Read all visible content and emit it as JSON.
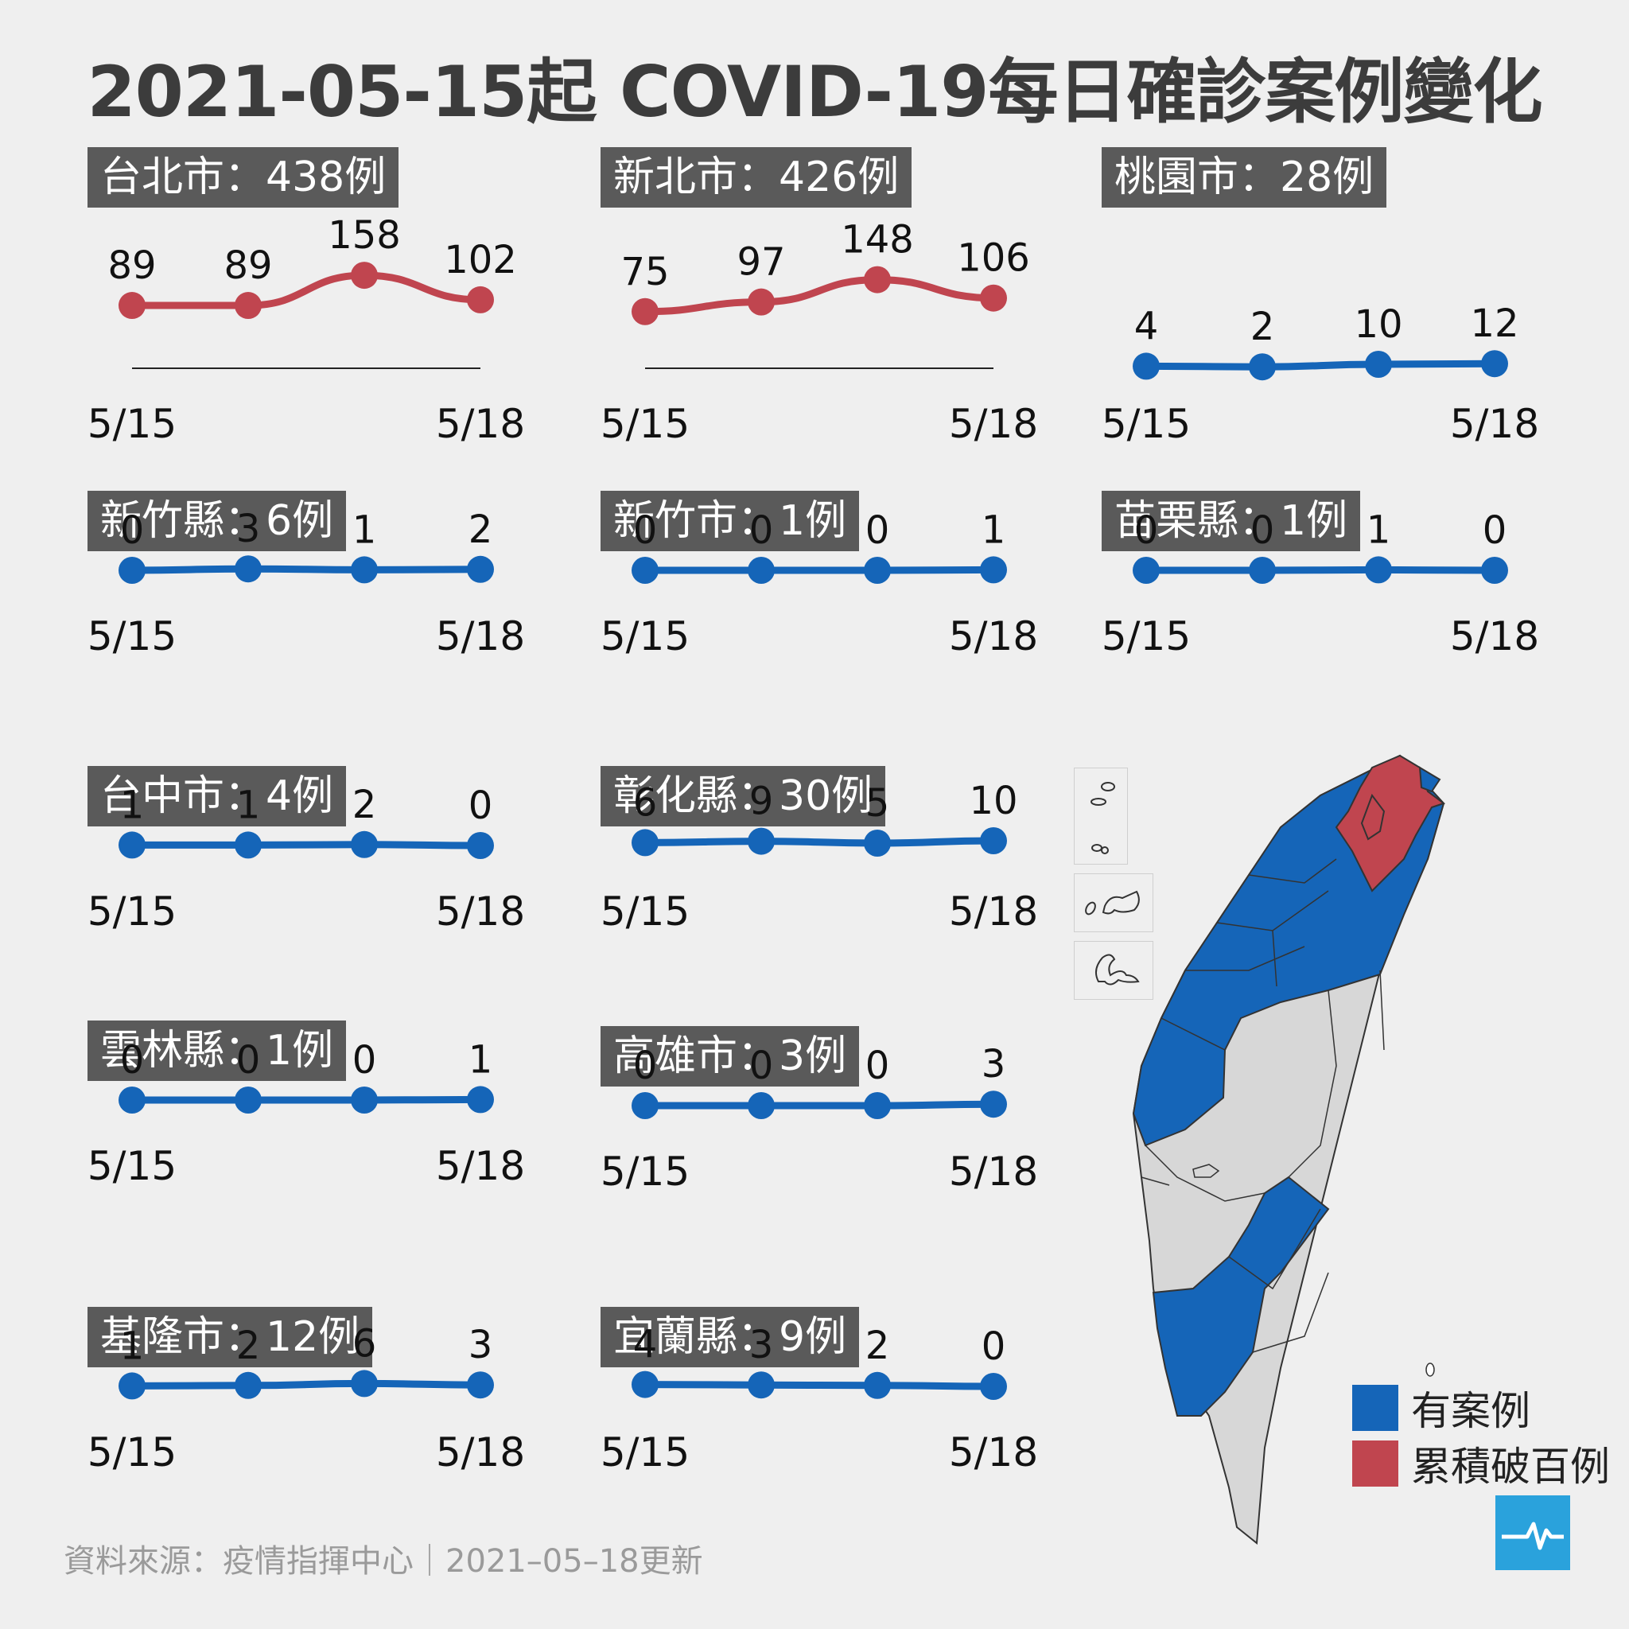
{
  "title": "2021-05-15起 COVID-19每日確診案例變化",
  "chart_data": [
    {
      "type": "line",
      "label": "台北市：438例",
      "categories": [
        "5/15",
        "",
        "",
        "5/18"
      ],
      "values": [
        89,
        89,
        158,
        102
      ],
      "color": "#c0454f"
    },
    {
      "type": "line",
      "label": "新北市：426例",
      "categories": [
        "5/15",
        "",
        "",
        "5/18"
      ],
      "values": [
        75,
        97,
        148,
        106
      ],
      "color": "#c0454f"
    },
    {
      "type": "line",
      "label": "桃園市：28例",
      "categories": [
        "5/15",
        "",
        "",
        "5/18"
      ],
      "values": [
        4,
        2,
        10,
        12
      ],
      "color": "#1565b8"
    },
    {
      "type": "line",
      "label": "新竹縣：6例",
      "categories": [
        "5/15",
        "",
        "",
        "5/18"
      ],
      "values": [
        0,
        3,
        1,
        2
      ],
      "color": "#1565b8"
    },
    {
      "type": "line",
      "label": "新竹市：1例",
      "categories": [
        "5/15",
        "",
        "",
        "5/18"
      ],
      "values": [
        0,
        0,
        0,
        1
      ],
      "color": "#1565b8"
    },
    {
      "type": "line",
      "label": "苗栗縣：1例",
      "categories": [
        "5/15",
        "",
        "",
        "5/18"
      ],
      "values": [
        0,
        0,
        1,
        0
      ],
      "color": "#1565b8"
    },
    {
      "type": "line",
      "label": "台中市：4例",
      "categories": [
        "5/15",
        "",
        "",
        "5/18"
      ],
      "values": [
        1,
        1,
        2,
        0
      ],
      "color": "#1565b8"
    },
    {
      "type": "line",
      "label": "彰化縣：30例",
      "categories": [
        "5/15",
        "",
        "",
        "5/18"
      ],
      "values": [
        6,
        9,
        5,
        10
      ],
      "color": "#1565b8"
    },
    {
      "type": "line",
      "label": "雲林縣：1例",
      "categories": [
        "5/15",
        "",
        "",
        "5/18"
      ],
      "values": [
        0,
        0,
        0,
        1
      ],
      "color": "#1565b8"
    },
    {
      "type": "line",
      "label": "高雄市：3例",
      "categories": [
        "5/15",
        "",
        "",
        "5/18"
      ],
      "values": [
        0,
        0,
        0,
        3
      ],
      "color": "#1565b8"
    },
    {
      "type": "line",
      "label": "基隆市：12例",
      "categories": [
        "5/15",
        "",
        "",
        "5/18"
      ],
      "values": [
        1,
        2,
        6,
        3
      ],
      "color": "#1565b8"
    },
    {
      "type": "line",
      "label": "宜蘭縣：9例",
      "categories": [
        "5/15",
        "",
        "",
        "5/18"
      ],
      "values": [
        4,
        3,
        2,
        0
      ],
      "color": "#1565b8"
    }
  ],
  "legend": [
    {
      "label": "有案例",
      "color": "#1565b8"
    },
    {
      "label": "累積破百例",
      "color": "#c0454f"
    }
  ],
  "map_colors": {
    "cases": "#1565b8",
    "over_hundred": "#c0454f",
    "none": "#d7d7d7"
  },
  "footer": "資料來源：疫情指揮中心｜2021–05–18更新"
}
